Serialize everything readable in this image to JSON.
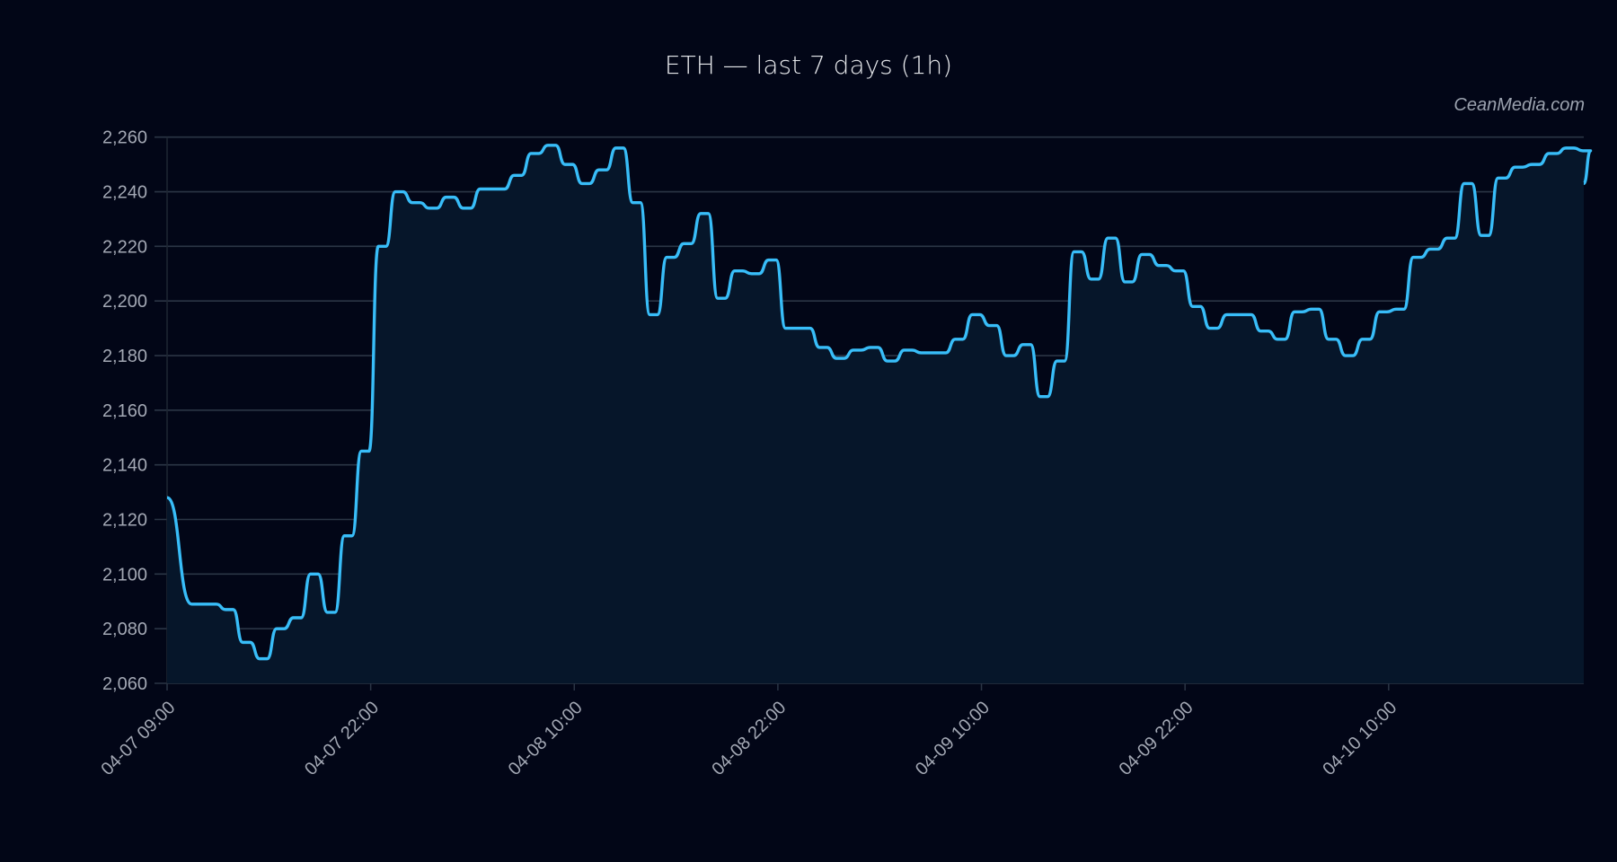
{
  "chart_data": {
    "type": "line",
    "title": "ETH — last 7 days (1h)",
    "watermark": "CeanMedia.com",
    "xlabel": "",
    "ylabel": "",
    "ylim": [
      2060,
      2260
    ],
    "yticks": [
      2060,
      2080,
      2100,
      2120,
      2140,
      2160,
      2180,
      2200,
      2220,
      2240,
      2260
    ],
    "ytick_labels": [
      "2,060",
      "2,080",
      "2,100",
      "2,120",
      "2,140",
      "2,160",
      "2,180",
      "2,200",
      "2,220",
      "2,240",
      "2,260"
    ],
    "xlim_hours": [
      0,
      83.5
    ],
    "xticks_hours": [
      0,
      12,
      24,
      36,
      48,
      60,
      72
    ],
    "xtick_labels": [
      "04-07 09:00",
      "04-07 22:00",
      "04-08 10:00",
      "04-08 22:00",
      "04-09 10:00",
      "04-09 22:00",
      "04-10 10:00"
    ],
    "grid": true,
    "series": [
      {
        "name": "ETH",
        "color": "#38bdf8",
        "fill": "#06162a",
        "values": [
          2128,
          2089,
          2089,
          2087,
          2075,
          2069,
          2080,
          2084,
          2100,
          2086,
          2114,
          2145,
          2220,
          2240,
          2236,
          2234,
          2238,
          2234,
          2241,
          2241,
          2246,
          2254,
          2257,
          2250,
          2243,
          2248,
          2256,
          2236,
          2195,
          2216,
          2221,
          2232,
          2201,
          2211,
          2210,
          2215,
          2190,
          2190,
          2183,
          2179,
          2182,
          2183,
          2178,
          2182,
          2181,
          2181,
          2186,
          2195,
          2191,
          2180,
          2184,
          2165,
          2178,
          2218,
          2208,
          2223,
          2207,
          2217,
          2213,
          2211,
          2198,
          2190,
          2195,
          2195,
          2189,
          2186,
          2196,
          2197,
          2186,
          2180,
          2186,
          2196,
          2197,
          2216,
          2219,
          2223,
          2243,
          2224,
          2245,
          2249,
          2250,
          2254,
          2256,
          2255,
          2243
        ]
      }
    ]
  }
}
